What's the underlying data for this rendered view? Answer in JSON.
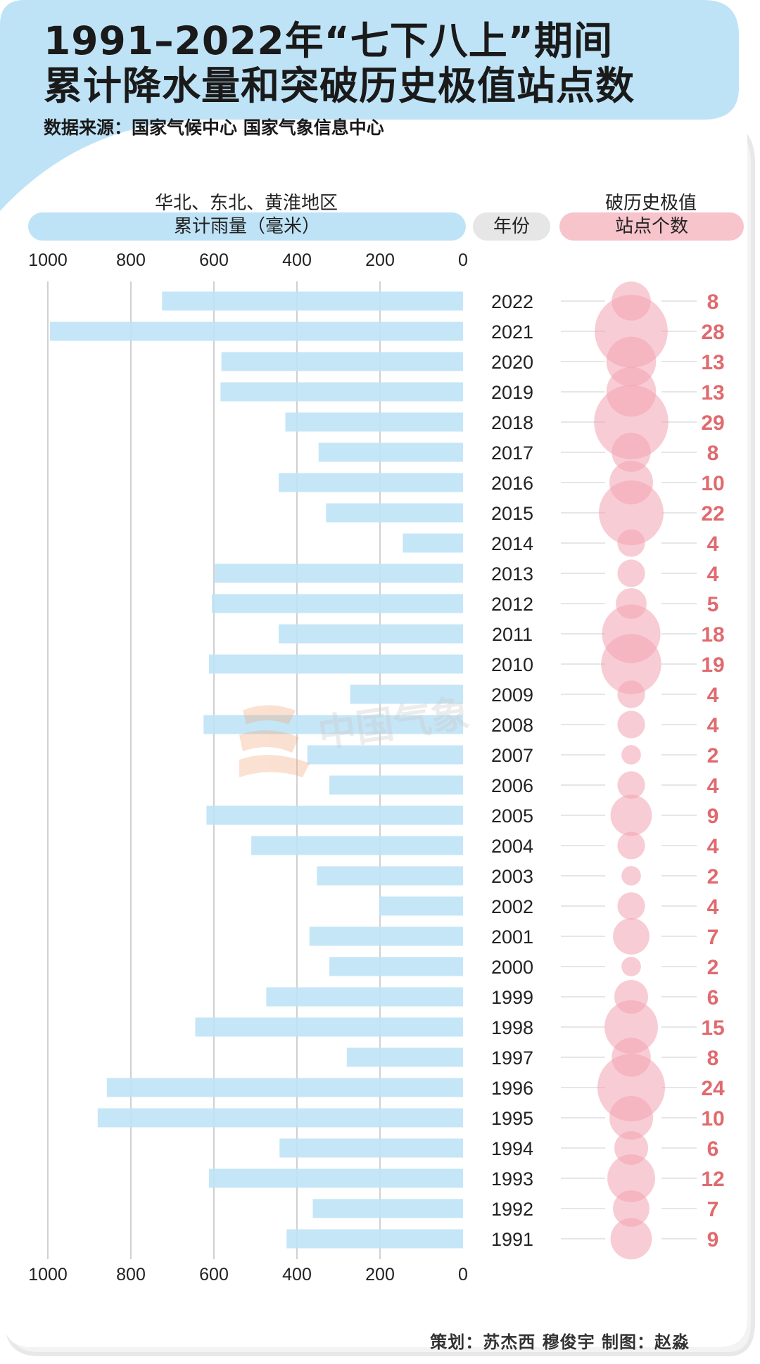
{
  "header": {
    "title_line1": "1991–2022年“七下八上”期间",
    "title_line2": "累计降水量和突破历史极值站点数",
    "source": "数据来源：国家气候中心 国家气象信息中心"
  },
  "columns": {
    "region_label": "华北、东北、黄淮地区",
    "rain_label": "累计雨量（毫米）",
    "year_label": "年份",
    "record_label_top": "破历史极值",
    "record_label_bottom": "站点个数"
  },
  "watermark": "中国气象",
  "credits": "策划：苏杰西  穆俊宇    制图：赵淼",
  "colors": {
    "header_bg": "#bfe3f6",
    "bar": "#bfe3f6",
    "pill_blue": "#bfe3f6",
    "pill_gray": "#e6e6e6",
    "pill_pink": "#f7c4cc",
    "bubble": "#f2a3b0",
    "count_text": "#e06a6e",
    "frame": "#ececec"
  },
  "chart_data": {
    "type": "bar",
    "title": "1991–2022年“七下八上”期间累计降水量和突破历史极值站点数",
    "xlabel": "累计雨量（毫米）",
    "ylabel": "年份",
    "xlim": [
      0,
      1000
    ],
    "xticks": [
      1000,
      800,
      600,
      400,
      200,
      0
    ],
    "orientation": "horizontal-reversed",
    "categories": [
      "2022",
      "2021",
      "2020",
      "2019",
      "2018",
      "2017",
      "2016",
      "2015",
      "2014",
      "2013",
      "2012",
      "2011",
      "2010",
      "2009",
      "2008",
      "2007",
      "2006",
      "2005",
      "2004",
      "2003",
      "2002",
      "2001",
      "2000",
      "1999",
      "1998",
      "1997",
      "1996",
      "1995",
      "1994",
      "1993",
      "1992",
      "1991"
    ],
    "series": [
      {
        "name": "累计雨量（毫米）",
        "values": [
          725,
          995,
          582,
          584,
          428,
          348,
          444,
          330,
          145,
          598,
          605,
          444,
          612,
          272,
          625,
          375,
          322,
          618,
          510,
          352,
          202,
          370,
          322,
          474,
          645,
          280,
          858,
          880,
          442,
          612,
          362,
          425
        ]
      },
      {
        "name": "破历史极值站点个数",
        "values": [
          8,
          28,
          13,
          13,
          29,
          8,
          10,
          22,
          4,
          4,
          5,
          18,
          19,
          4,
          4,
          2,
          4,
          9,
          4,
          2,
          4,
          7,
          2,
          6,
          15,
          8,
          24,
          10,
          6,
          12,
          7,
          9
        ]
      }
    ]
  }
}
